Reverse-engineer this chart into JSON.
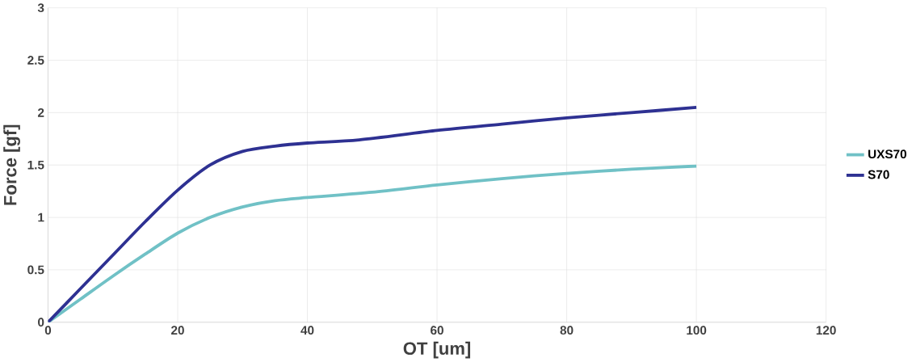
{
  "chart_data": {
    "type": "line",
    "xlabel": "OT [um]",
    "ylabel": "Force [gf]",
    "xlim": [
      0,
      120
    ],
    "xticks": [
      0,
      20,
      40,
      60,
      80,
      100,
      120
    ],
    "ylim": [
      0,
      3
    ],
    "yticks": [
      0,
      0.5,
      1,
      1.5,
      2,
      2.5,
      3
    ],
    "grid": true,
    "legend": "right",
    "marker": "none",
    "line_style": "solid",
    "series": [
      {
        "name": "UXS70",
        "color": "#70c1c6",
        "x": [
          0,
          5,
          10,
          15,
          20,
          25,
          30,
          35,
          40,
          50,
          60,
          70,
          80,
          90,
          100
        ],
        "values": [
          0,
          0.22,
          0.44,
          0.65,
          0.85,
          1.0,
          1.1,
          1.16,
          1.19,
          1.24,
          1.31,
          1.37,
          1.42,
          1.46,
          1.49
        ]
      },
      {
        "name": "S70",
        "color": "#2e3192",
        "x": [
          0,
          5,
          10,
          15,
          20,
          25,
          30,
          35,
          40,
          48,
          60,
          70,
          80,
          90,
          100
        ],
        "values": [
          0,
          0.32,
          0.64,
          0.96,
          1.26,
          1.5,
          1.63,
          1.68,
          1.71,
          1.74,
          1.83,
          1.89,
          1.95,
          2.0,
          2.05
        ]
      }
    ]
  }
}
